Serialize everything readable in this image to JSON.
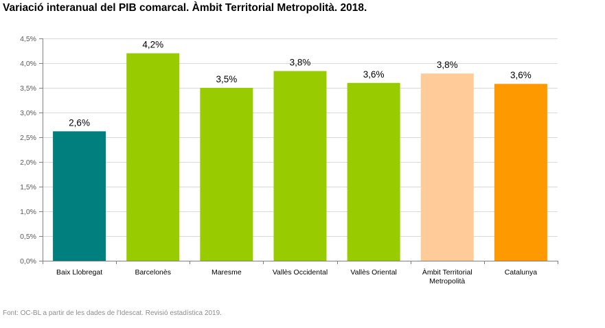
{
  "title": "Variació interanual del PIB comarcal. Àmbit Territorial Metropolità. 2018.",
  "source": "Font: OC-BL a partir de les dades de l'Idescat. Revisió estadística 2019.",
  "chart_data": {
    "type": "bar",
    "categories": [
      "Baix Llobregat",
      "Barcelonès",
      "Maresme",
      "Vallès Occidental",
      "Vallès Oriental",
      "Àmbit Territorial Metropolità",
      "Catalunya"
    ],
    "category_lines": [
      [
        "Baix Llobregat"
      ],
      [
        "Barcelonès"
      ],
      [
        "Maresme"
      ],
      [
        "Vallès Occidental"
      ],
      [
        "Vallès Oriental"
      ],
      [
        "Àmbit Territorial",
        "Metropolità"
      ],
      [
        "Catalunya"
      ]
    ],
    "values": [
      2.62,
      4.2,
      3.5,
      3.84,
      3.6,
      3.79,
      3.58
    ],
    "data_labels": [
      "2,6%",
      "4,2%",
      "3,5%",
      "3,8%",
      "3,6%",
      "3,8%",
      "3,6%"
    ],
    "colors": [
      "#007f7f",
      "#99cc00",
      "#99cc00",
      "#99cc00",
      "#99cc00",
      "#ffcc99",
      "#ff9900"
    ],
    "ylim": [
      0,
      4.5
    ],
    "yticks": [
      0,
      0.5,
      1.0,
      1.5,
      2.0,
      2.5,
      3.0,
      3.5,
      4.0,
      4.5
    ],
    "ytick_labels": [
      "0,0%",
      "0,5%",
      "1,0%",
      "1,5%",
      "2,0%",
      "2,5%",
      "3,0%",
      "3,5%",
      "4,0%",
      "4,5%"
    ],
    "grid": true,
    "xlabel": "",
    "ylabel": ""
  }
}
